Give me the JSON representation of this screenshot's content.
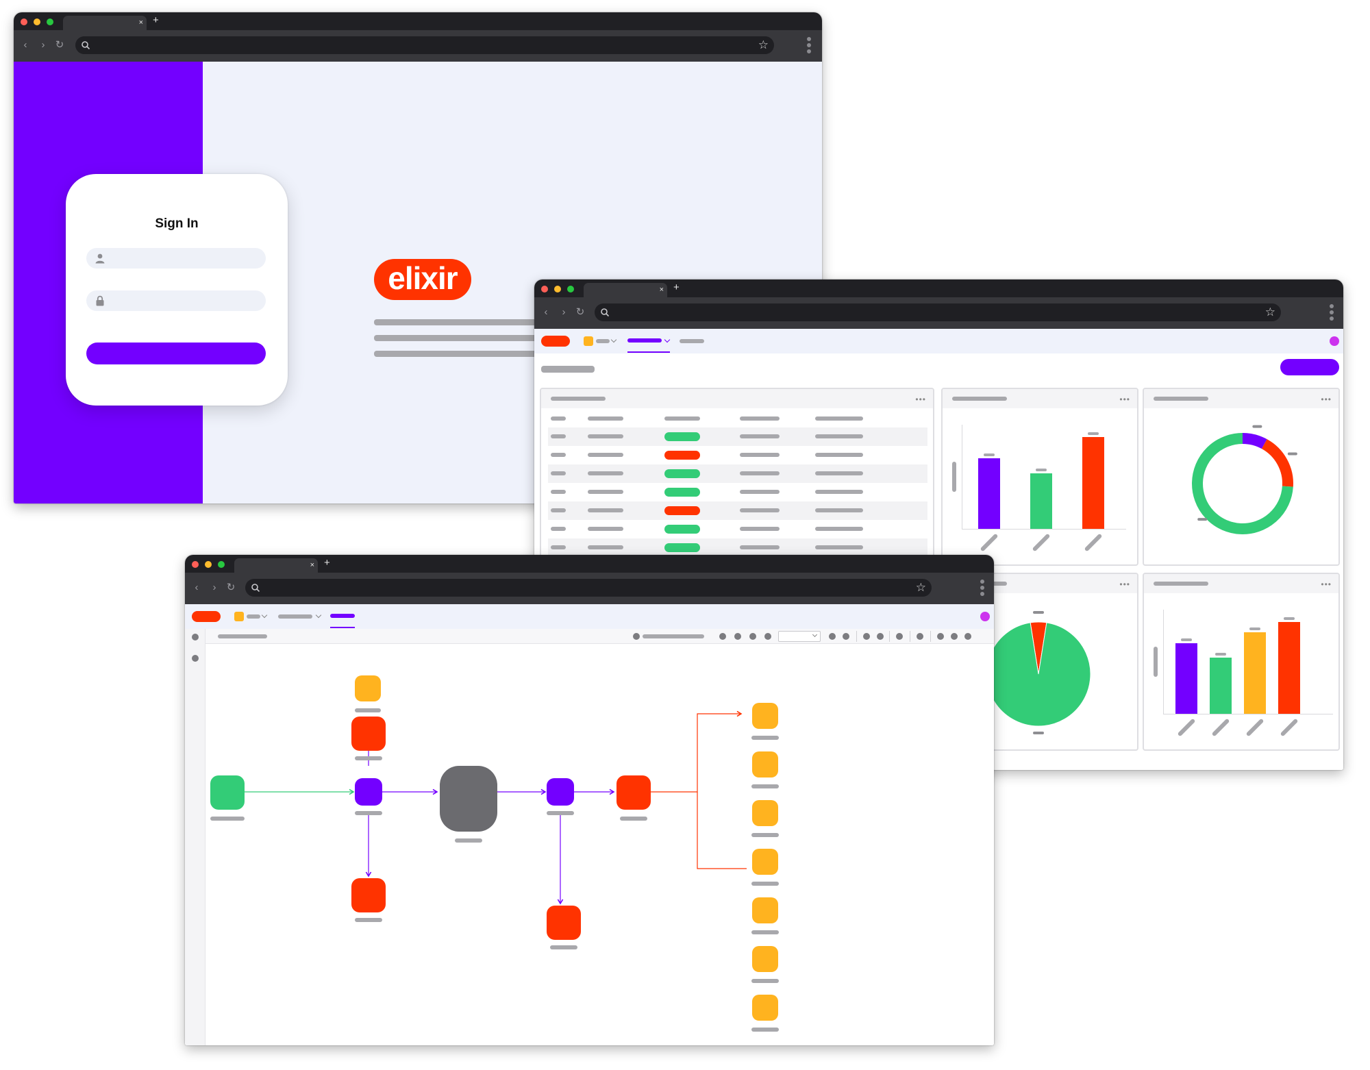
{
  "signin_window": {
    "tab_close": "×",
    "new_tab": "+",
    "signin": {
      "title": "Sign In"
    },
    "brand": {
      "logo_text": "elixir"
    }
  },
  "dashboard_window": {
    "tab_close": "×",
    "new_tab": "+",
    "table_rows": [
      {
        "status": "green"
      },
      {
        "status": "red"
      },
      {
        "status": "green"
      },
      {
        "status": "green"
      },
      {
        "status": "red"
      },
      {
        "status": "green"
      },
      {
        "status": "green"
      }
    ]
  },
  "workflow_window": {
    "tab_close": "×",
    "new_tab": "+"
  },
  "colors": {
    "purple": "#7300ff",
    "red": "#ff3300",
    "green": "#33cc77",
    "yellow": "#ffb31f",
    "gray_node": "#6b6b6f",
    "magenta_avatar": "#cc33ee"
  },
  "chart_data": [
    {
      "type": "bar",
      "title": "",
      "categories": [
        "",
        "",
        ""
      ],
      "values": [
        68,
        53,
        88
      ],
      "colors": [
        "#7300ff",
        "#33cc77",
        "#ff3300"
      ]
    },
    {
      "type": "pie",
      "title": "",
      "variant": "donut",
      "values": [
        8,
        18,
        74
      ],
      "colors": [
        "#7300ff",
        "#ff3300",
        "#33cc77"
      ]
    },
    {
      "type": "pie",
      "title": "",
      "values": [
        5,
        95
      ],
      "colors": [
        "#ff3300",
        "#33cc77"
      ]
    },
    {
      "type": "bar",
      "title": "",
      "categories": [
        "",
        "",
        "",
        ""
      ],
      "values": [
        68,
        54,
        78,
        88
      ],
      "colors": [
        "#7300ff",
        "#33cc77",
        "#ffb31f",
        "#ff3300"
      ]
    }
  ]
}
